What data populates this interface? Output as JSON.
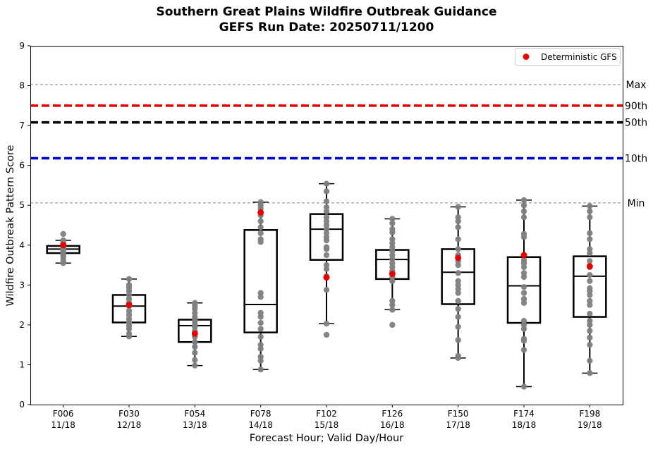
{
  "chart_data": {
    "type": "box",
    "title": "Southern Great Plains Wildfire Outbreak Guidance",
    "subtitle": "GEFS Run Date: 20250711/1200",
    "xlabel": "Forecast Hour; Valid Day/Hour",
    "ylabel": "Wildfire Outbreak Pattern Score",
    "ylim": [
      0,
      9
    ],
    "yticks": [
      "0",
      "1",
      "2",
      "3",
      "4",
      "5",
      "6",
      "7",
      "8",
      "9"
    ],
    "legend": {
      "position": "top-right",
      "entries": [
        {
          "label": "Deterministic GFS",
          "color": "#e60000"
        }
      ]
    },
    "reference_lines": [
      {
        "label": "Max",
        "value": 8.03,
        "color": "#808080",
        "style": "dashed-thin"
      },
      {
        "label": "90th",
        "value": 7.5,
        "color": "#e60000",
        "style": "dashed-thick"
      },
      {
        "label": "50th",
        "value": 7.08,
        "color": "#000000",
        "style": "dashed-thick"
      },
      {
        "label": "10th",
        "value": 6.18,
        "color": "#0000cc",
        "style": "dashed-thick"
      },
      {
        "label": "Min",
        "value": 5.06,
        "color": "#808080",
        "style": "dashed-thin"
      }
    ],
    "categories": [
      {
        "hour": "F006",
        "valid": "11/18",
        "whisker_low": 3.55,
        "q1": 3.8,
        "median": 3.9,
        "q3": 3.98,
        "whisker_high": 4.12,
        "gfs": 4.0,
        "members": [
          3.55,
          3.62,
          3.7,
          3.75,
          3.8,
          3.84,
          3.87,
          3.9,
          3.92,
          3.95,
          3.97,
          4.0,
          4.03,
          4.08,
          4.12,
          4.28
        ]
      },
      {
        "hour": "F030",
        "valid": "12/18",
        "whisker_low": 1.71,
        "q1": 2.06,
        "median": 2.47,
        "q3": 2.75,
        "whisker_high": 3.15,
        "gfs": 2.5,
        "members": [
          1.71,
          1.78,
          1.9,
          1.98,
          2.06,
          2.15,
          2.25,
          2.35,
          2.47,
          2.55,
          2.65,
          2.75,
          2.85,
          2.93,
          3.0,
          3.15
        ]
      },
      {
        "hour": "F054",
        "valid": "13/18",
        "whisker_low": 0.98,
        "q1": 1.57,
        "median": 1.98,
        "q3": 2.13,
        "whisker_high": 2.55,
        "gfs": 1.78,
        "members": [
          0.98,
          1.12,
          1.3,
          1.45,
          1.57,
          1.7,
          1.85,
          1.95,
          2.0,
          2.08,
          2.13,
          2.2,
          2.3,
          2.4,
          2.48,
          2.55
        ]
      },
      {
        "hour": "F078",
        "valid": "14/18",
        "whisker_low": 0.88,
        "q1": 1.81,
        "median": 2.51,
        "q3": 4.38,
        "whisker_high": 5.08,
        "gfs": 4.82,
        "members": [
          0.88,
          1.1,
          1.2,
          1.4,
          1.5,
          1.7,
          1.9,
          2.05,
          2.2,
          2.3,
          2.7,
          2.8,
          4.08,
          4.15,
          4.3,
          4.45,
          4.6,
          4.75,
          4.92,
          5.0,
          5.08
        ]
      },
      {
        "hour": "F102",
        "valid": "15/18",
        "whisker_low": 2.03,
        "q1": 3.63,
        "median": 4.4,
        "q3": 4.78,
        "whisker_high": 5.54,
        "gfs": 3.19,
        "members": [
          1.75,
          2.03,
          2.88,
          3.22,
          3.4,
          3.5,
          3.75,
          3.9,
          3.95,
          4.12,
          4.2,
          4.3,
          4.4,
          4.5,
          4.6,
          4.7,
          4.85,
          4.95,
          5.1,
          5.35,
          5.54
        ]
      },
      {
        "hour": "F126",
        "valid": "16/18",
        "whisker_low": 2.38,
        "q1": 3.15,
        "median": 3.64,
        "q3": 3.88,
        "whisker_high": 4.66,
        "gfs": 3.28,
        "members": [
          2.0,
          2.38,
          2.5,
          2.6,
          3.1,
          3.2,
          3.35,
          3.45,
          3.55,
          3.65,
          3.75,
          3.85,
          3.95,
          4.05,
          4.15,
          4.32,
          4.4,
          4.55,
          4.66
        ]
      },
      {
        "hour": "F150",
        "valid": "17/18",
        "whisker_low": 1.17,
        "q1": 2.52,
        "median": 3.32,
        "q3": 3.9,
        "whisker_high": 4.96,
        "gfs": 3.68,
        "members": [
          1.17,
          1.22,
          1.62,
          1.95,
          2.2,
          2.4,
          2.6,
          2.8,
          2.9,
          3.0,
          3.1,
          3.3,
          3.5,
          3.6,
          3.75,
          3.9,
          4.15,
          4.45,
          4.6,
          4.7,
          4.96
        ]
      },
      {
        "hour": "F174",
        "valid": "18/18",
        "whisker_low": 0.45,
        "q1": 2.05,
        "median": 2.98,
        "q3": 3.7,
        "whisker_high": 5.13,
        "gfs": 3.75,
        "members": [
          0.45,
          1.37,
          1.6,
          1.65,
          1.9,
          2.0,
          2.1,
          2.55,
          2.65,
          2.8,
          2.95,
          3.2,
          3.3,
          3.45,
          3.55,
          3.62,
          4.2,
          4.28,
          4.7,
          4.85,
          5.0,
          5.13
        ]
      },
      {
        "hour": "F198",
        "valid": "19/18",
        "whisker_low": 0.79,
        "q1": 2.2,
        "median": 3.22,
        "q3": 3.72,
        "whisker_high": 4.98,
        "gfs": 3.47,
        "members": [
          0.79,
          1.1,
          1.5,
          1.68,
          1.85,
          2.0,
          2.1,
          2.28,
          2.5,
          2.6,
          2.75,
          2.85,
          2.92,
          3.1,
          3.25,
          3.45,
          3.6,
          3.8,
          3.9,
          4.15,
          4.3,
          4.7,
          4.85,
          4.98
        ]
      }
    ]
  }
}
